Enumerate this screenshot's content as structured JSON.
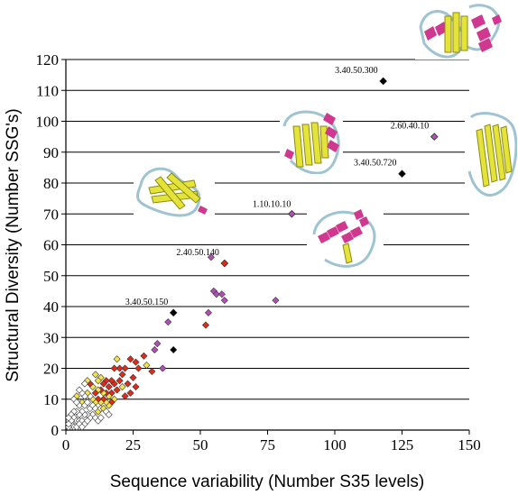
{
  "chart_data": {
    "type": "scatter",
    "title": "",
    "xlabel": "Sequence variability (Number S35 levels)",
    "ylabel": "Structural Diversity (Number SSG's)",
    "xlim": [
      0,
      150
    ],
    "ylim": [
      0,
      120
    ],
    "xticks": [
      "0",
      "25",
      "50",
      "75",
      "100",
      "125",
      "150"
    ],
    "yticks": [
      "0",
      "10",
      "20",
      "30",
      "40",
      "50",
      "60",
      "70",
      "80",
      "90",
      "100",
      "110",
      "120"
    ],
    "grid": "horizontal",
    "marker": "diamond",
    "colors": {
      "white": "#ffffff",
      "yellow": "#f2e44a",
      "red": "#e02a1a",
      "purple": "#b04fb5",
      "black": "#000000"
    },
    "labelled_points": [
      {
        "label": "3.40.50.300",
        "x": 118,
        "y": 113,
        "color": "black"
      },
      {
        "label": "2.60.40.10",
        "x": 137,
        "y": 95,
        "color": "purple"
      },
      {
        "label": "3.40.50.720",
        "x": 125,
        "y": 83,
        "color": "black"
      },
      {
        "label": "1.10.10.10",
        "x": 84,
        "y": 70,
        "color": "purple"
      },
      {
        "label": "2.40.50.140",
        "x": 59,
        "y": 54,
        "color": "red"
      },
      {
        "label": "3.40.50.150",
        "x": 40,
        "y": 38,
        "color": "black"
      }
    ],
    "points": [
      {
        "x": 54,
        "y": 56,
        "color": "purple"
      },
      {
        "x": 55,
        "y": 45,
        "color": "purple"
      },
      {
        "x": 56,
        "y": 44,
        "color": "purple"
      },
      {
        "x": 58,
        "y": 44,
        "color": "purple"
      },
      {
        "x": 59,
        "y": 42,
        "color": "purple"
      },
      {
        "x": 78,
        "y": 42,
        "color": "purple"
      },
      {
        "x": 53,
        "y": 38,
        "color": "purple"
      },
      {
        "x": 52,
        "y": 34,
        "color": "red"
      },
      {
        "x": 38,
        "y": 35,
        "color": "purple"
      },
      {
        "x": 40,
        "y": 26,
        "color": "black"
      },
      {
        "x": 34,
        "y": 28,
        "color": "purple"
      },
      {
        "x": 33,
        "y": 26,
        "color": "purple"
      },
      {
        "x": 36,
        "y": 20,
        "color": "purple"
      },
      {
        "x": 32,
        "y": 19,
        "color": "red"
      },
      {
        "x": 29,
        "y": 24,
        "color": "red"
      },
      {
        "x": 30,
        "y": 21,
        "color": "yellow"
      },
      {
        "x": 27,
        "y": 20,
        "color": "red"
      },
      {
        "x": 26,
        "y": 22,
        "color": "red"
      },
      {
        "x": 24,
        "y": 23,
        "color": "red"
      },
      {
        "x": 25,
        "y": 17,
        "color": "red"
      },
      {
        "x": 26,
        "y": 14,
        "color": "red"
      },
      {
        "x": 22,
        "y": 20,
        "color": "red"
      },
      {
        "x": 21,
        "y": 18,
        "color": "red"
      },
      {
        "x": 20,
        "y": 20,
        "color": "red"
      },
      {
        "x": 19,
        "y": 23,
        "color": "yellow"
      },
      {
        "x": 18,
        "y": 20,
        "color": "red"
      },
      {
        "x": 23,
        "y": 15,
        "color": "red"
      },
      {
        "x": 24,
        "y": 12,
        "color": "red"
      },
      {
        "x": 22,
        "y": 11,
        "color": "red"
      },
      {
        "x": 21,
        "y": 14,
        "color": "yellow"
      },
      {
        "x": 20,
        "y": 16,
        "color": "red"
      },
      {
        "x": 19,
        "y": 13,
        "color": "red"
      },
      {
        "x": 18,
        "y": 15,
        "color": "red"
      },
      {
        "x": 17,
        "y": 16,
        "color": "red"
      },
      {
        "x": 16,
        "y": 14,
        "color": "red"
      },
      {
        "x": 15,
        "y": 16,
        "color": "red"
      },
      {
        "x": 14,
        "y": 15,
        "color": "red"
      },
      {
        "x": 13,
        "y": 17,
        "color": "yellow"
      },
      {
        "x": 12,
        "y": 16,
        "color": "yellow"
      },
      {
        "x": 11,
        "y": 18,
        "color": "yellow"
      },
      {
        "x": 17,
        "y": 12,
        "color": "red"
      },
      {
        "x": 16,
        "y": 11,
        "color": "yellow"
      },
      {
        "x": 15,
        "y": 12,
        "color": "red"
      },
      {
        "x": 14,
        "y": 12,
        "color": "yellow"
      },
      {
        "x": 13,
        "y": 13,
        "color": "red"
      },
      {
        "x": 12,
        "y": 13,
        "color": "yellow"
      },
      {
        "x": 11,
        "y": 12,
        "color": "red"
      },
      {
        "x": 10,
        "y": 14,
        "color": "yellow"
      },
      {
        "x": 9,
        "y": 15,
        "color": "red"
      },
      {
        "x": 8,
        "y": 16,
        "color": "yellow"
      },
      {
        "x": 7,
        "y": 15,
        "color": "white"
      },
      {
        "x": 18,
        "y": 10,
        "color": "yellow"
      },
      {
        "x": 17,
        "y": 9,
        "color": "red"
      },
      {
        "x": 16,
        "y": 8,
        "color": "yellow"
      },
      {
        "x": 15,
        "y": 9,
        "color": "yellow"
      },
      {
        "x": 14,
        "y": 10,
        "color": "red"
      },
      {
        "x": 13,
        "y": 9,
        "color": "yellow"
      },
      {
        "x": 12,
        "y": 10,
        "color": "red"
      },
      {
        "x": 11,
        "y": 9,
        "color": "yellow"
      },
      {
        "x": 10,
        "y": 10,
        "color": "yellow"
      },
      {
        "x": 9,
        "y": 11,
        "color": "white"
      },
      {
        "x": 8,
        "y": 12,
        "color": "yellow"
      },
      {
        "x": 7,
        "y": 11,
        "color": "white"
      },
      {
        "x": 6,
        "y": 12,
        "color": "white"
      },
      {
        "x": 5,
        "y": 13,
        "color": "white"
      },
      {
        "x": 4,
        "y": 11,
        "color": "yellow"
      },
      {
        "x": 3,
        "y": 10,
        "color": "white"
      },
      {
        "x": 6,
        "y": 9,
        "color": "yellow"
      },
      {
        "x": 5,
        "y": 8,
        "color": "white"
      },
      {
        "x": 4,
        "y": 9,
        "color": "white"
      },
      {
        "x": 7,
        "y": 8,
        "color": "white"
      },
      {
        "x": 8,
        "y": 9,
        "color": "white"
      },
      {
        "x": 9,
        "y": 7,
        "color": "white"
      },
      {
        "x": 10,
        "y": 8,
        "color": "white"
      },
      {
        "x": 11,
        "y": 7,
        "color": "white"
      },
      {
        "x": 12,
        "y": 6,
        "color": "yellow"
      },
      {
        "x": 13,
        "y": 7,
        "color": "white"
      },
      {
        "x": 14,
        "y": 7,
        "color": "yellow"
      },
      {
        "x": 15,
        "y": 6,
        "color": "white"
      },
      {
        "x": 16,
        "y": 5,
        "color": "white"
      },
      {
        "x": 10,
        "y": 5,
        "color": "white"
      },
      {
        "x": 9,
        "y": 4,
        "color": "white"
      },
      {
        "x": 8,
        "y": 5,
        "color": "white"
      },
      {
        "x": 7,
        "y": 5,
        "color": "white"
      },
      {
        "x": 6,
        "y": 6,
        "color": "white"
      },
      {
        "x": 5,
        "y": 5,
        "color": "white"
      },
      {
        "x": 4,
        "y": 6,
        "color": "white"
      },
      {
        "x": 3,
        "y": 6,
        "color": "white"
      },
      {
        "x": 2,
        "y": 5,
        "color": "white"
      },
      {
        "x": 3,
        "y": 4,
        "color": "white"
      },
      {
        "x": 4,
        "y": 3,
        "color": "white"
      },
      {
        "x": 5,
        "y": 3,
        "color": "white"
      },
      {
        "x": 6,
        "y": 3,
        "color": "white"
      },
      {
        "x": 7,
        "y": 2,
        "color": "white"
      },
      {
        "x": 8,
        "y": 3,
        "color": "white"
      },
      {
        "x": 2,
        "y": 2,
        "color": "white"
      },
      {
        "x": 3,
        "y": 1,
        "color": "white"
      },
      {
        "x": 1,
        "y": 1,
        "color": "white"
      },
      {
        "x": 2,
        "y": 3,
        "color": "white"
      },
      {
        "x": 1,
        "y": 2,
        "color": "white"
      },
      {
        "x": 4,
        "y": 1,
        "color": "white"
      },
      {
        "x": 5,
        "y": 2,
        "color": "white"
      },
      {
        "x": 6,
        "y": 1,
        "color": "white"
      },
      {
        "x": 1,
        "y": 4,
        "color": "white"
      },
      {
        "x": 11,
        "y": 4,
        "color": "white"
      },
      {
        "x": 12,
        "y": 3,
        "color": "white"
      },
      {
        "x": 13,
        "y": 4,
        "color": "white"
      }
    ],
    "structure_images": [
      {
        "name": "structure-3-40-50-300",
        "kind": "alpha-beta"
      },
      {
        "name": "structure-2-60-40-10",
        "kind": "beta-sandwich"
      },
      {
        "name": "structure-3-40-50-720",
        "kind": "alpha-beta"
      },
      {
        "name": "structure-1-10-10-10",
        "kind": "alpha"
      },
      {
        "name": "structure-2-40-50-140",
        "kind": "beta-barrel"
      }
    ]
  }
}
